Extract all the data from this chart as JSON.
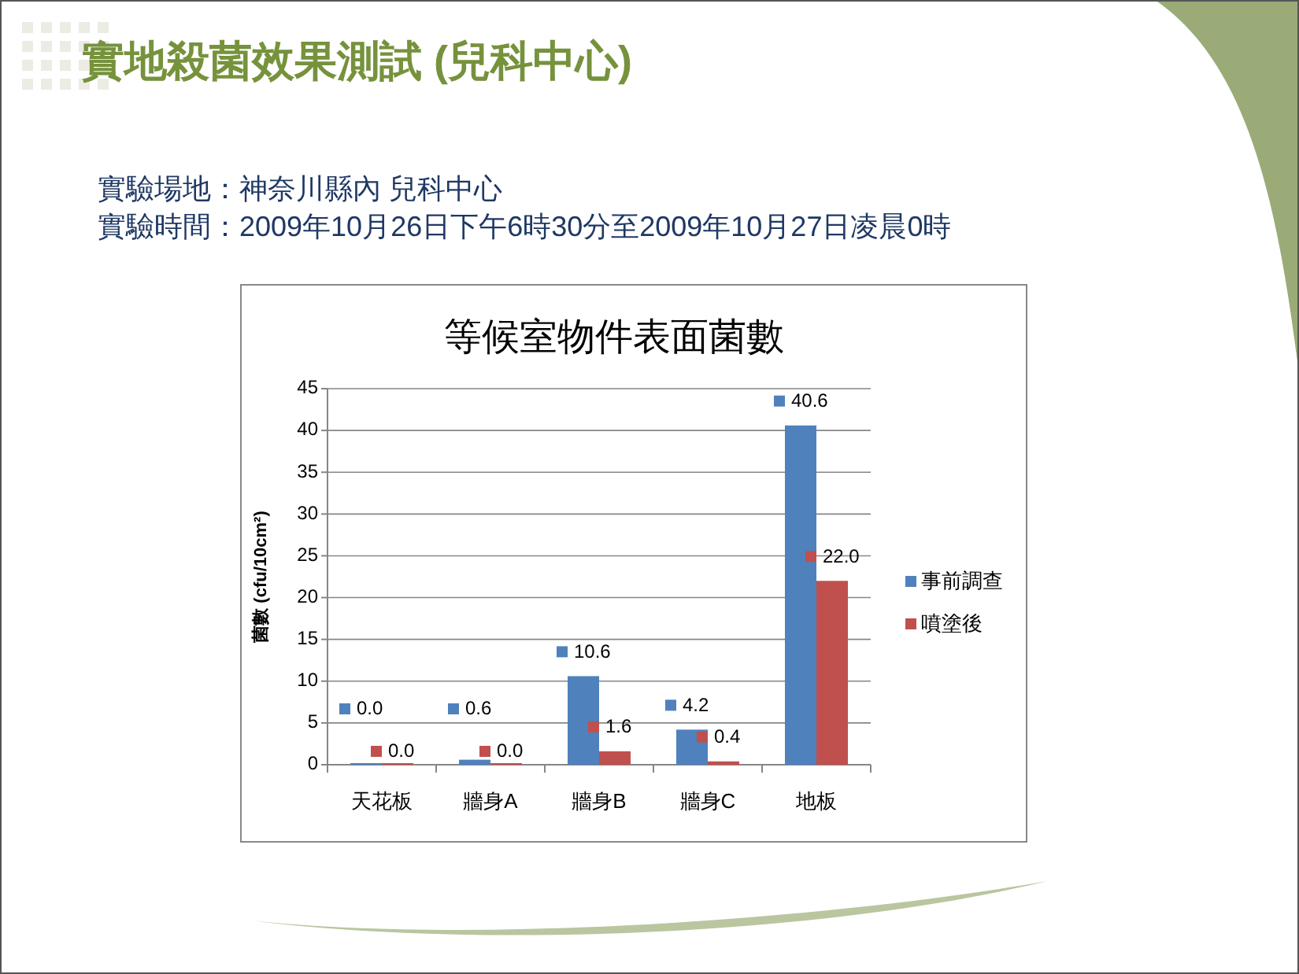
{
  "chart_data": {
    "type": "bar",
    "title": "等候室物件表面菌數",
    "ylabel": "菌數 (cfu/10cm²)",
    "categories": [
      "天花板",
      "牆身A",
      "牆身B",
      "牆身C",
      "地板"
    ],
    "series": [
      {
        "name": "事前調查",
        "color": "#4f81bd",
        "values": [
          0,
          0.6,
          10.6,
          4.2,
          40.6
        ],
        "value_labels": [
          "0.0",
          "0.6",
          "10.6",
          "4.2",
          "40.6"
        ]
      },
      {
        "name": "噴塗後",
        "color": "#c0504d",
        "values": [
          0,
          0,
          1.6,
          0.4,
          22
        ],
        "value_labels": [
          "0.0",
          "0.0",
          "1.6",
          "0.4",
          "22.0"
        ]
      }
    ],
    "ylim": [
      0,
      45
    ],
    "yticks": [
      0,
      5,
      10,
      15,
      20,
      25,
      30,
      35,
      40,
      45
    ],
    "grid": "y",
    "legend": "right",
    "annotations": [
      "實地殺菌效果測試 (兒科中心)",
      "實驗場地：神奈川縣內 兒科中心",
      "實驗時間：2009年10月26日下午6時30分至2009年10月27日凌晨0時"
    ]
  }
}
